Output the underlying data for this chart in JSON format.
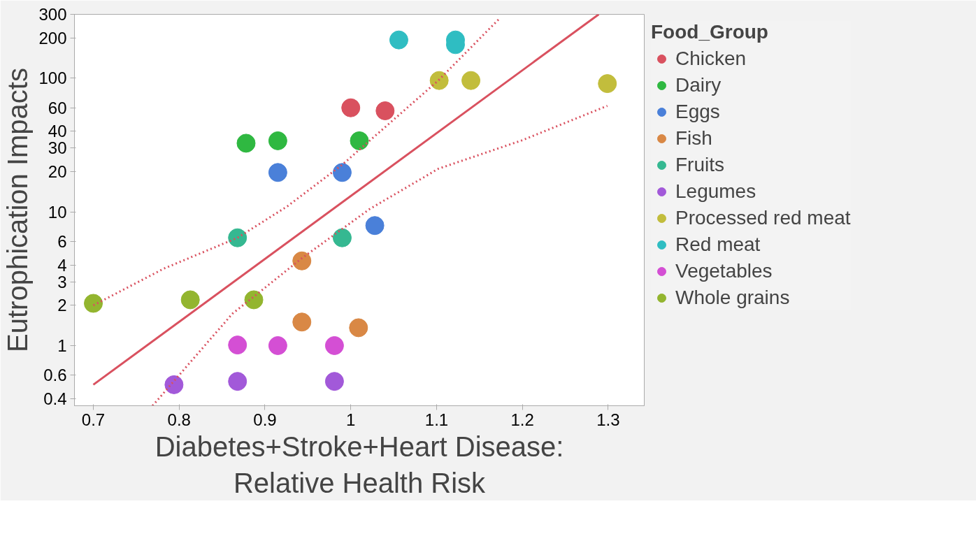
{
  "chart_data": {
    "type": "scatter",
    "xlabel": "Diabetes+Stroke+Heart Disease:\nRelative Health Risk",
    "ylabel": "Eutrophication Impacts",
    "legend_title": "Food_Group",
    "legend": "right",
    "grid": false,
    "log": "y",
    "marker": "circle",
    "xlim": [
      0.678,
      1.342
    ],
    "ylim": [
      0.355,
      300
    ],
    "xticks": [
      0.7,
      0.8,
      0.9,
      1,
      1.1,
      1.2,
      1.3
    ],
    "yticks": [
      0.4,
      0.6,
      1,
      2,
      3,
      4,
      6,
      10,
      20,
      30,
      40,
      60,
      100,
      200,
      300
    ],
    "series": [
      {
        "name": "Chicken",
        "color": "#d9515f",
        "x": [
          1.0,
          1.04
        ],
        "values": [
          60,
          57
        ]
      },
      {
        "name": "Dairy",
        "color": "#2fb841",
        "x": [
          0.878,
          0.915,
          1.01
        ],
        "values": [
          32.6,
          34,
          34
        ]
      },
      {
        "name": "Eggs",
        "color": "#4a80d9",
        "x": [
          0.915,
          0.99,
          1.028
        ],
        "values": [
          19.7,
          19.7,
          7.9
        ]
      },
      {
        "name": "Fish",
        "color": "#d98845",
        "x": [
          0.943,
          0.943,
          1.009
        ],
        "values": [
          4.3,
          1.5,
          1.36
        ]
      },
      {
        "name": "Fruits",
        "color": "#35b891",
        "x": [
          0.868,
          0.99
        ],
        "values": [
          6.4,
          6.4
        ]
      },
      {
        "name": "Legumes",
        "color": "#a259d9",
        "x": [
          0.794,
          0.868,
          0.981
        ],
        "values": [
          0.51,
          0.54,
          0.54
        ]
      },
      {
        "name": "Processed red meat",
        "color": "#c2bd3c",
        "x": [
          1.103,
          1.14,
          1.299
        ],
        "values": [
          96,
          96,
          91
        ]
      },
      {
        "name": "Red meat",
        "color": "#2fbdc2",
        "x": [
          1.056,
          1.122,
          1.122
        ],
        "values": [
          193,
          193,
          178
        ]
      },
      {
        "name": "Vegetables",
        "color": "#d44fd4",
        "x": [
          0.868,
          0.915,
          0.981
        ],
        "values": [
          1.01,
          1.0,
          1.0
        ]
      },
      {
        "name": "Whole grains",
        "color": "#93b52f",
        "x": [
          0.7,
          0.813,
          0.887
        ],
        "values": [
          2.07,
          2.2,
          2.2
        ]
      },
      {
        "type": "line",
        "color": "#d9515f",
        "line_style": "solid",
        "marker": "none",
        "x": [
          0.7,
          1.289
        ],
        "values": [
          0.51,
          300
        ]
      },
      {
        "type": "line",
        "color": "#d9515f",
        "line_style": "dotted",
        "marker": "none",
        "x": [
          0.7,
          0.782,
          0.868,
          0.926,
          0.99,
          1.102,
          1.174
        ],
        "values": [
          2.0,
          3.76,
          6.4,
          11,
          22.5,
          96,
          282
        ]
      },
      {
        "type": "line",
        "color": "#d9515f",
        "line_style": "dotted",
        "marker": "none",
        "x": [
          0.769,
          0.862,
          0.943,
          1.022,
          1.102,
          1.198,
          1.299
        ],
        "values": [
          0.355,
          1.73,
          4.5,
          10.5,
          21,
          34,
          62
        ]
      }
    ]
  }
}
